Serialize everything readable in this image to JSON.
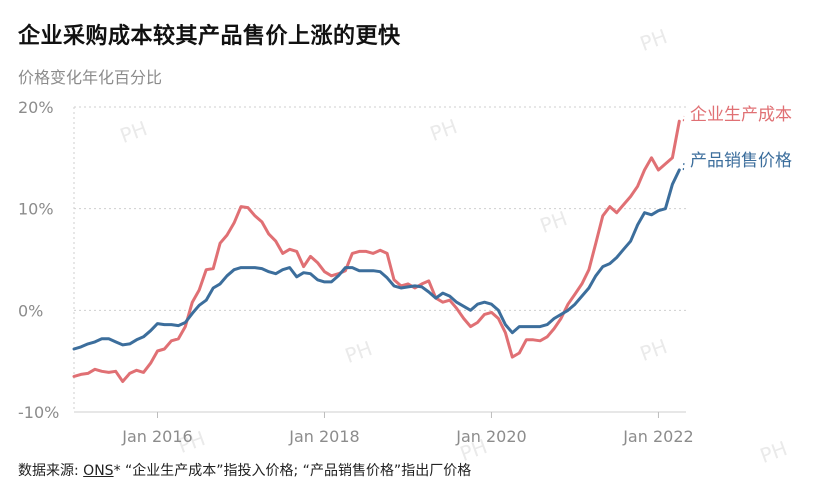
{
  "title": "企业采购成本较其产品售价上涨的更快",
  "subtitle": "价格变化年化百分比",
  "footer": {
    "prefix": "数据来源: ",
    "source": "ONS",
    "note": "* “企业生产成本”指投入价格; “产品销售价格”指出厂价格"
  },
  "watermark": "PH",
  "colors": {
    "cost": "#e07074",
    "price": "#3c6e9c",
    "grid": "#cfcfcf",
    "axis_text": "#8c8c8c"
  },
  "chart_data": {
    "type": "line",
    "xlabel": "",
    "ylabel": "",
    "x_ticks": [
      "Jan 2016",
      "Jan 2018",
      "Jan 2020",
      "Jan 2022"
    ],
    "x_tick_values": [
      2016,
      2018,
      2020,
      2022
    ],
    "y_ticks": [
      "20%",
      "10%",
      "0%",
      "-10%"
    ],
    "y_tick_values": [
      20,
      10,
      0,
      -10
    ],
    "ylim": [
      -10,
      20
    ],
    "xlim": [
      2015.0,
      2022.33
    ],
    "grid": true,
    "legend": "right, at line ends",
    "series": [
      {
        "name": "企业生产成本",
        "color": "#e07074",
        "x": [
          2015.0,
          2015.083,
          2015.167,
          2015.25,
          2015.333,
          2015.417,
          2015.5,
          2015.583,
          2015.667,
          2015.75,
          2015.833,
          2015.917,
          2016.0,
          2016.083,
          2016.167,
          2016.25,
          2016.333,
          2016.417,
          2016.5,
          2016.583,
          2016.667,
          2016.75,
          2016.833,
          2016.917,
          2017.0,
          2017.083,
          2017.167,
          2017.25,
          2017.333,
          2017.417,
          2017.5,
          2017.583,
          2017.667,
          2017.75,
          2017.833,
          2017.917,
          2018.0,
          2018.083,
          2018.167,
          2018.25,
          2018.333,
          2018.417,
          2018.5,
          2018.583,
          2018.667,
          2018.75,
          2018.833,
          2018.917,
          2019.0,
          2019.083,
          2019.167,
          2019.25,
          2019.333,
          2019.417,
          2019.5,
          2019.583,
          2019.667,
          2019.75,
          2019.833,
          2019.917,
          2020.0,
          2020.083,
          2020.167,
          2020.25,
          2020.333,
          2020.417,
          2020.5,
          2020.583,
          2020.667,
          2020.75,
          2020.833,
          2020.917,
          2021.0,
          2021.083,
          2021.167,
          2021.25,
          2021.333,
          2021.417,
          2021.5,
          2021.583,
          2021.667,
          2021.75,
          2021.833,
          2021.917,
          2022.0,
          2022.083,
          2022.167,
          2022.25
        ],
        "values": [
          -6.5,
          -6.3,
          -6.2,
          -5.8,
          -6.0,
          -6.1,
          -6.0,
          -7.0,
          -6.2,
          -5.9,
          -6.1,
          -5.2,
          -4.0,
          -3.8,
          -3.0,
          -2.8,
          -1.6,
          0.8,
          2.0,
          4.0,
          4.1,
          6.6,
          7.4,
          8.6,
          10.2,
          10.1,
          9.3,
          8.7,
          7.5,
          6.8,
          5.6,
          6.0,
          5.8,
          4.3,
          5.3,
          4.7,
          3.8,
          3.4,
          3.6,
          3.9,
          5.6,
          5.8,
          5.8,
          5.6,
          5.9,
          5.6,
          3.0,
          2.4,
          2.6,
          2.2,
          2.6,
          2.9,
          1.2,
          0.8,
          1.0,
          0.2,
          -0.8,
          -1.6,
          -1.2,
          -0.4,
          -0.2,
          -0.8,
          -2.2,
          -4.6,
          -4.2,
          -2.9,
          -2.9,
          -3.0,
          -2.6,
          -1.8,
          -0.8,
          0.6,
          1.6,
          2.6,
          4.0,
          6.6,
          9.3,
          10.2,
          9.6,
          10.4,
          11.2,
          12.2,
          13.8,
          15.0,
          13.8,
          14.4,
          15.0,
          18.6
        ]
      },
      {
        "name": "产品销售价格",
        "color": "#3c6e9c",
        "x": [
          2015.0,
          2015.083,
          2015.167,
          2015.25,
          2015.333,
          2015.417,
          2015.5,
          2015.583,
          2015.667,
          2015.75,
          2015.833,
          2015.917,
          2016.0,
          2016.083,
          2016.167,
          2016.25,
          2016.333,
          2016.417,
          2016.5,
          2016.583,
          2016.667,
          2016.75,
          2016.833,
          2016.917,
          2017.0,
          2017.083,
          2017.167,
          2017.25,
          2017.333,
          2017.417,
          2017.5,
          2017.583,
          2017.667,
          2017.75,
          2017.833,
          2017.917,
          2018.0,
          2018.083,
          2018.167,
          2018.25,
          2018.333,
          2018.417,
          2018.5,
          2018.583,
          2018.667,
          2018.75,
          2018.833,
          2018.917,
          2019.0,
          2019.083,
          2019.167,
          2019.25,
          2019.333,
          2019.417,
          2019.5,
          2019.583,
          2019.667,
          2019.75,
          2019.833,
          2019.917,
          2020.0,
          2020.083,
          2020.167,
          2020.25,
          2020.333,
          2020.417,
          2020.5,
          2020.583,
          2020.667,
          2020.75,
          2020.833,
          2020.917,
          2021.0,
          2021.083,
          2021.167,
          2021.25,
          2021.333,
          2021.417,
          2021.5,
          2021.583,
          2021.667,
          2021.75,
          2021.833,
          2021.917,
          2022.0,
          2022.083,
          2022.167,
          2022.25
        ],
        "values": [
          -3.8,
          -3.6,
          -3.3,
          -3.1,
          -2.8,
          -2.8,
          -3.1,
          -3.4,
          -3.3,
          -2.9,
          -2.6,
          -2.0,
          -1.3,
          -1.4,
          -1.4,
          -1.5,
          -1.2,
          -0.3,
          0.5,
          1.0,
          2.2,
          2.6,
          3.4,
          4.0,
          4.2,
          4.2,
          4.2,
          4.1,
          3.8,
          3.6,
          4.0,
          4.2,
          3.3,
          3.7,
          3.6,
          3.0,
          2.8,
          2.8,
          3.4,
          4.2,
          4.2,
          3.9,
          3.9,
          3.9,
          3.8,
          3.2,
          2.4,
          2.2,
          2.3,
          2.4,
          2.3,
          1.8,
          1.2,
          1.7,
          1.4,
          0.8,
          0.4,
          0.0,
          0.6,
          0.8,
          0.6,
          0.0,
          -1.4,
          -2.2,
          -1.6,
          -1.6,
          -1.6,
          -1.6,
          -1.4,
          -0.8,
          -0.4,
          0.0,
          0.6,
          1.4,
          2.2,
          3.4,
          4.3,
          4.6,
          5.2,
          6.0,
          6.8,
          8.4,
          9.6,
          9.4,
          9.8,
          10.0,
          12.4,
          13.8
        ]
      }
    ]
  }
}
